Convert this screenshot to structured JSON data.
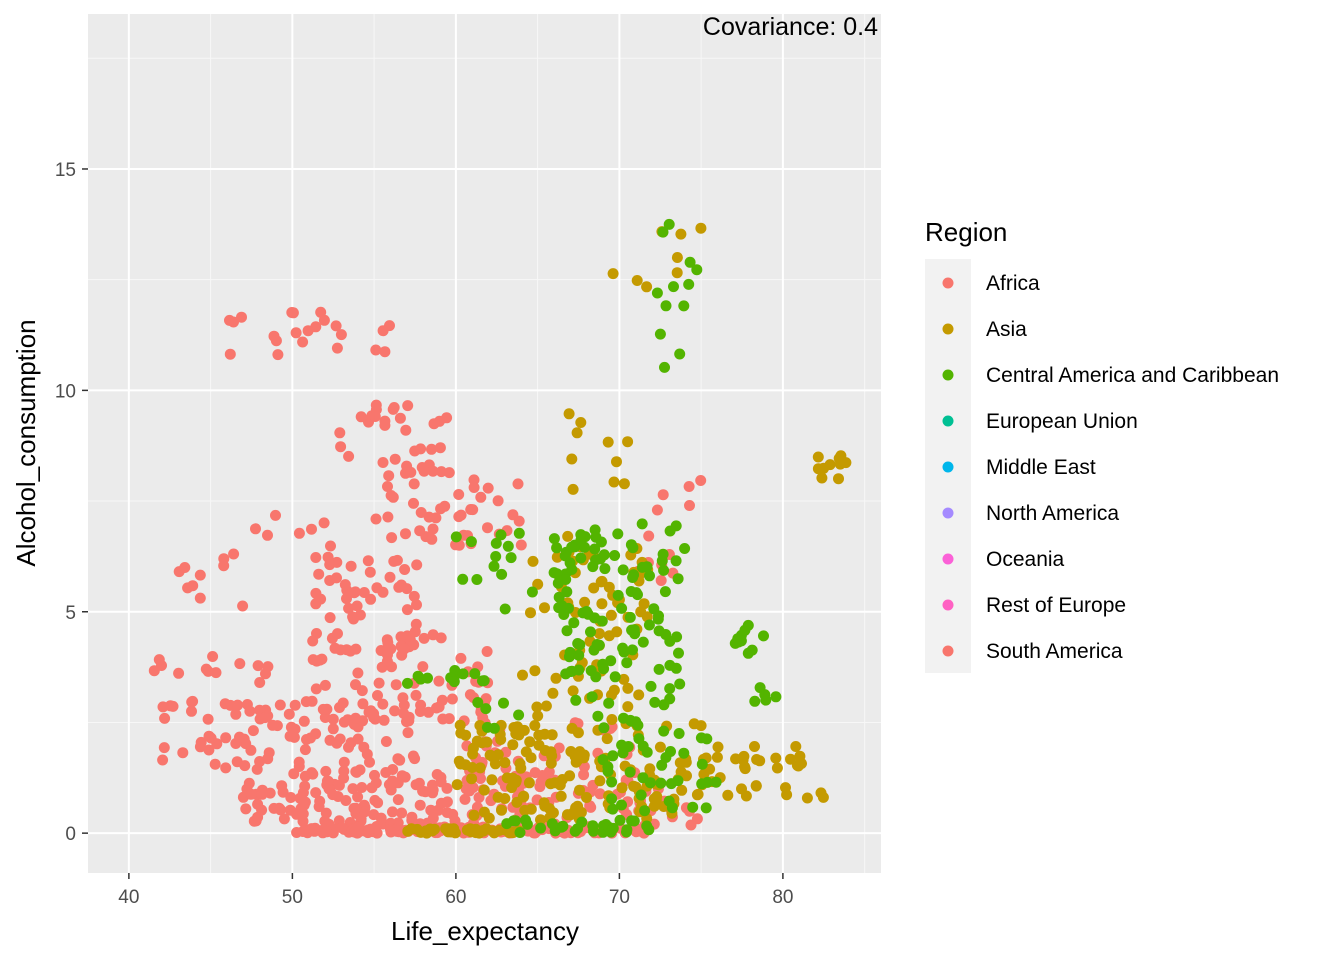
{
  "chart_data": {
    "type": "scatter",
    "title": "",
    "xlabel": "Life_expectancy",
    "ylabel": "Alcohol_consumption",
    "xlim": [
      37.5,
      86
    ],
    "ylim": [
      -0.9,
      18.5
    ],
    "x_ticks": [
      40,
      50,
      60,
      70,
      80
    ],
    "y_ticks": [
      0,
      5,
      10,
      15
    ],
    "annotation": "Covariance: 0.4",
    "grid": true,
    "legend": {
      "title": "Region",
      "position": "right"
    },
    "series": [
      {
        "name": "Africa",
        "color": "#F8766D",
        "clusters": [
          {
            "x": [
              46,
              56
            ],
            "y": [
              10.8,
              11.8
            ],
            "n": 22
          },
          {
            "x": [
              52,
              60
            ],
            "y": [
              8.0,
              9.8
            ],
            "n": 30
          },
          {
            "x": [
              55,
              64
            ],
            "y": [
              6.5,
              8.3
            ],
            "n": 45
          },
          {
            "x": [
              42.5,
              47
            ],
            "y": [
              5.0,
              6.4
            ],
            "n": 10
          },
          {
            "x": [
              47,
              52
            ],
            "y": [
              6.5,
              7.2
            ],
            "n": 6
          },
          {
            "x": [
              50,
              58
            ],
            "y": [
              4.0,
              6.5
            ],
            "n": 60
          },
          {
            "x": [
              48,
              62
            ],
            "y": [
              2.5,
              4.5
            ],
            "n": 70
          },
          {
            "x": [
              39,
              48
            ],
            "y": [
              3.6,
              4.0
            ],
            "n": 10
          },
          {
            "x": [
              42,
              48
            ],
            "y": [
              2.5,
              3.0
            ],
            "n": 14
          },
          {
            "x": [
              42,
              48
            ],
            "y": [
              1.4,
              2.2
            ],
            "n": 20
          },
          {
            "x": [
              47,
              58
            ],
            "y": [
              1.4,
              3.0
            ],
            "n": 60
          },
          {
            "x": [
              47,
              66
            ],
            "y": [
              0.2,
              1.4
            ],
            "n": 150
          },
          {
            "x": [
              50,
              72
            ],
            "y": [
              0.0,
              0.15
            ],
            "n": 160
          },
          {
            "x": [
              60,
              72
            ],
            "y": [
              0.8,
              2.5
            ],
            "n": 40
          },
          {
            "x": [
              66,
              75
            ],
            "y": [
              0.1,
              1.0
            ],
            "n": 30
          },
          {
            "x": [
              71,
              75
            ],
            "y": [
              5.5,
              8.0
            ],
            "n": 12
          }
        ]
      },
      {
        "name": "Asia",
        "color": "#C49A00",
        "clusters": [
          {
            "x": [
              57,
              64
            ],
            "y": [
              0.0,
              0.1
            ],
            "n": 40
          },
          {
            "x": [
              60,
              75
            ],
            "y": [
              0.3,
              2.5
            ],
            "n": 150
          },
          {
            "x": [
              64,
              72
            ],
            "y": [
              2.5,
              6.5
            ],
            "n": 60
          },
          {
            "x": [
              66,
              72
            ],
            "y": [
              7.5,
              9.9
            ],
            "n": 10
          },
          {
            "x": [
              68,
              72
            ],
            "y": [
              12.2,
              12.7
            ],
            "n": 3
          },
          {
            "x": [
              72,
              75
            ],
            "y": [
              12.5,
              13.8
            ],
            "n": 5
          },
          {
            "x": [
              75,
              82.5
            ],
            "y": [
              0.7,
              2.0
            ],
            "n": 35
          },
          {
            "x": [
              82,
              84
            ],
            "y": [
              8.0,
              8.6
            ],
            "n": 10
          },
          {
            "x": [
              66,
              70
            ],
            "y": [
              5.0,
              7.0
            ],
            "n": 15
          }
        ]
      },
      {
        "name": "Central America and Caribbean",
        "color": "#53B400",
        "clusters": [
          {
            "x": [
              57,
              62
            ],
            "y": [
              3.3,
              3.7
            ],
            "n": 12
          },
          {
            "x": [
              60,
              65
            ],
            "y": [
              5.0,
              6.8
            ],
            "n": 14
          },
          {
            "x": [
              61,
              64
            ],
            "y": [
              2.3,
              3.0
            ],
            "n": 6
          },
          {
            "x": [
              63,
              72
            ],
            "y": [
              0.0,
              0.3
            ],
            "n": 30
          },
          {
            "x": [
              66,
              74
            ],
            "y": [
              2.5,
              7.0
            ],
            "n": 120
          },
          {
            "x": [
              69,
              76
            ],
            "y": [
              0.5,
              2.5
            ],
            "n": 40
          },
          {
            "x": [
              72,
              75
            ],
            "y": [
              10.5,
              13.8
            ],
            "n": 12
          },
          {
            "x": [
              77,
              79
            ],
            "y": [
              4.0,
              4.7
            ],
            "n": 10
          },
          {
            "x": [
              78,
              80
            ],
            "y": [
              2.9,
              3.3
            ],
            "n": 5
          }
        ]
      },
      {
        "name": "European Union",
        "color": "#00C094",
        "clusters": []
      },
      {
        "name": "Middle East",
        "color": "#00B6EB",
        "clusters": []
      },
      {
        "name": "North America",
        "color": "#A58AFF",
        "clusters": []
      },
      {
        "name": "Oceania",
        "color": "#FB61D7",
        "clusters": []
      },
      {
        "name": "Rest of Europe",
        "color": "#FF61C3",
        "clusters": []
      },
      {
        "name": "South America",
        "color": "#F8766D",
        "clusters": []
      }
    ]
  }
}
